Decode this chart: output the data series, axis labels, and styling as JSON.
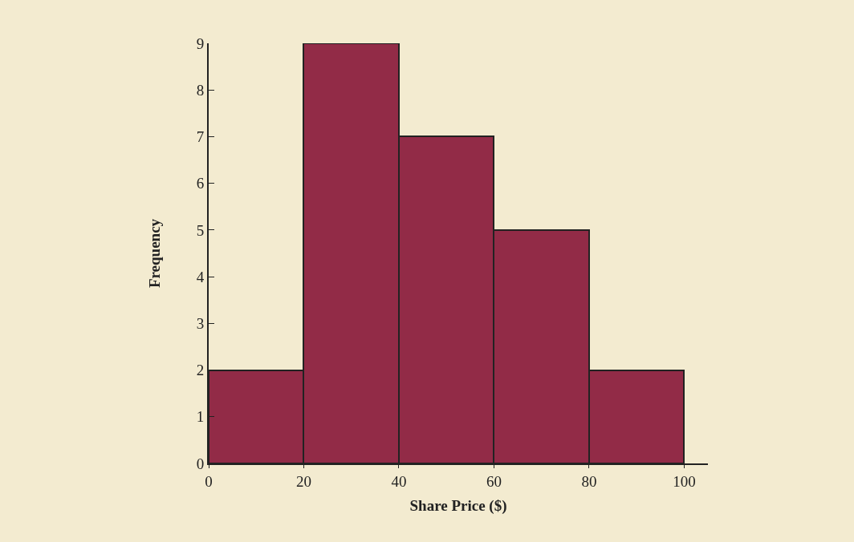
{
  "chart_data": {
    "type": "histogram",
    "xlabel": "Share Price ($)",
    "ylabel": "Frequency",
    "bins": [
      0,
      20,
      40,
      60,
      80,
      100
    ],
    "values": [
      2,
      9,
      7,
      5,
      2
    ],
    "color": "#922b47",
    "xlim": [
      0,
      105
    ],
    "xticks": [
      0,
      20,
      40,
      60,
      80,
      100
    ],
    "ylim": [
      0,
      9
    ],
    "yticks": [
      0,
      1,
      2,
      3,
      4,
      5,
      6,
      7,
      8,
      9
    ],
    "grid": false
  }
}
